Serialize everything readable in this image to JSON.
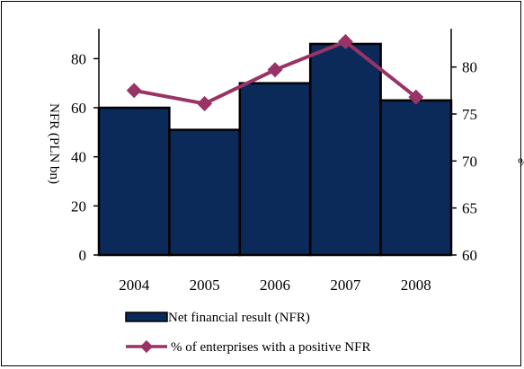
{
  "chart_data": {
    "type": "bar",
    "categories": [
      "2004",
      "2005",
      "2006",
      "2007",
      "2008"
    ],
    "series": [
      {
        "name": "Net financial result (NFR)",
        "type": "bar",
        "axis": "left",
        "color": "#0b2a5a",
        "values": [
          60,
          51,
          70,
          86,
          63
        ]
      },
      {
        "name": "% of enterprises with a positive NFR",
        "type": "line",
        "axis": "right",
        "color": "#993366",
        "values": [
          77.5,
          76.1,
          79.7,
          82.7,
          76.8
        ]
      }
    ],
    "ylabel": "NFR (PLN bn)",
    "y2label": "%",
    "ylim": [
      0,
      90
    ],
    "yticks": [
      0,
      20,
      40,
      60,
      80
    ],
    "y2lim": [
      60,
      83.5
    ],
    "y2ticks": [
      60,
      65,
      70,
      75,
      80
    ],
    "legend_position": "bottom",
    "grid": false
  }
}
